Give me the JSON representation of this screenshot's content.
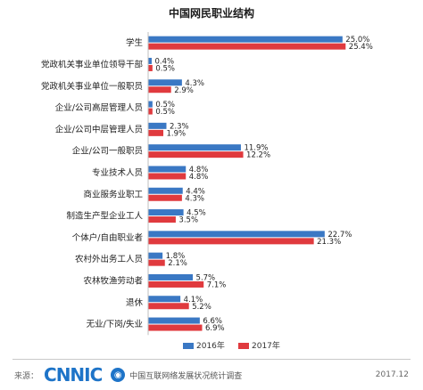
{
  "chart_data": {
    "type": "bar",
    "orientation": "horizontal",
    "title": "中国网民职业结构",
    "categories": [
      "学生",
      "党政机关事业单位领导干部",
      "党政机关事业单位一般职员",
      "企业/公司高层管理人员",
      "企业/公司中层管理人员",
      "企业/公司一般职员",
      "专业技术人员",
      "商业服务业职工",
      "制造生产型企业工人",
      "个体户/自由职业者",
      "农村外出务工人员",
      "农林牧渔劳动者",
      "退休",
      "无业/下岗/失业"
    ],
    "series": [
      {
        "name": "2016年",
        "color": "#3a78c4",
        "values": [
          25.0,
          0.4,
          4.3,
          0.5,
          2.3,
          11.9,
          4.8,
          4.4,
          4.5,
          22.7,
          1.8,
          5.7,
          4.1,
          6.6
        ],
        "labels": [
          "25.0%",
          "0.4%",
          "4.3%",
          "0.5%",
          "2.3%",
          "11.9%",
          "4.8%",
          "4.4%",
          "4.5%",
          "22.7%",
          "1.8%",
          "5.7%",
          "4.1%",
          "6.6%"
        ]
      },
      {
        "name": "2017年",
        "color": "#e03a3e",
        "values": [
          25.4,
          0.5,
          2.9,
          0.5,
          1.9,
          12.2,
          4.8,
          4.3,
          3.5,
          21.3,
          2.1,
          7.1,
          5.2,
          6.9
        ],
        "labels": [
          "25.4%",
          "0.5%",
          "2.9%",
          "0.5%",
          "1.9%",
          "12.2%",
          "4.8%",
          "4.3%",
          "3.5%",
          "21.3%",
          "2.1%",
          "7.1%",
          "5.2%",
          "6.9%"
        ]
      }
    ],
    "xlim": [
      0,
      26
    ],
    "grid": false,
    "legend": "bottom-center",
    "value_axis_visible": false
  },
  "footer": {
    "source_label": "来源：",
    "logo_text": "CNNIC",
    "survey_icon_glyph": "◉",
    "survey_name": "中国互联网络发展状况统计调查",
    "date": "2017.12"
  }
}
